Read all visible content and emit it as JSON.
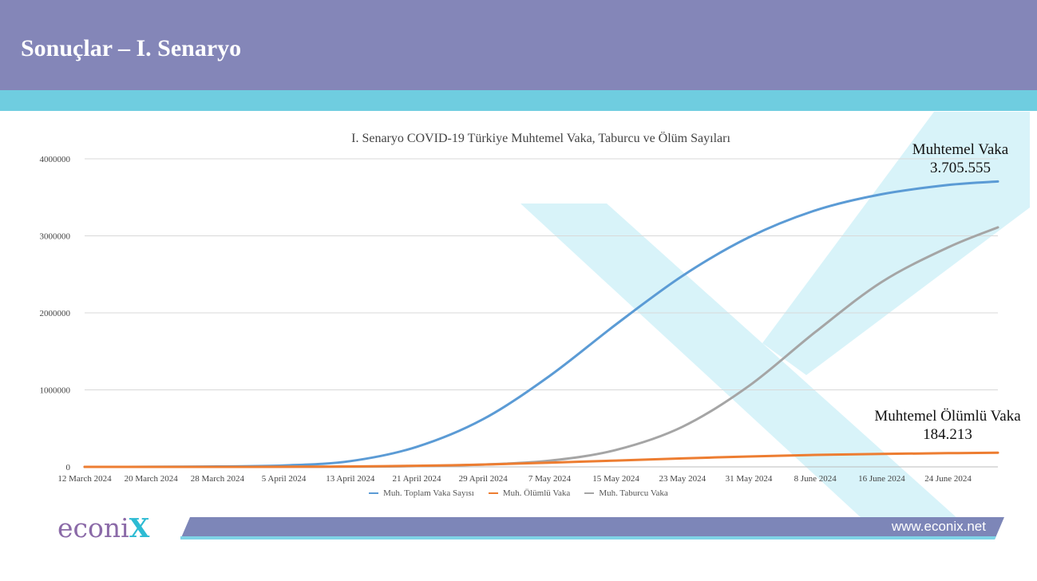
{
  "header": {
    "title": "Sonuçlar – I. Senaryo"
  },
  "colors": {
    "header": "#8486b8",
    "stripe": "#6fcde0",
    "cases": "#5b9bd5",
    "deaths": "#ed7d31",
    "discharged": "#a5a5a5"
  },
  "annotations": {
    "cases_label": "Muhtemel Vaka",
    "cases_value": "3.705.555",
    "deaths_label": "Muhtemel Ölümlü Vaka",
    "deaths_value": "184.213"
  },
  "footer": {
    "logo_text": "econi",
    "logo_x": "X",
    "url": "www.econix.net"
  },
  "chart_data": {
    "type": "line",
    "title": "I. Senaryo COVID-19 Türkiye Muhtemel Vaka, Taburcu ve Ölüm  Sayıları",
    "x_tick_labels": [
      "12 March 2024",
      "20 March 2024",
      "28 March 2024",
      "5 April 2024",
      "13 April 2024",
      "21 April 2024",
      "29 April 2024",
      "7 May 2024",
      "15 May 2024",
      "23 May 2024",
      "31 May 2024",
      "8 June 2024",
      "16 June 2024",
      "24 June 2024"
    ],
    "y_ticks": [
      0,
      1000000,
      2000000,
      3000000,
      4000000
    ],
    "ylim": [
      0,
      4000000
    ],
    "grid": true,
    "legend": "bottom",
    "x_days": [
      0,
      8,
      16,
      24,
      32,
      40,
      48,
      56,
      64,
      72,
      80,
      88,
      96,
      104,
      110
    ],
    "series": [
      {
        "name": "Muh. Toplam Vaka Sayısı",
        "color": "#5b9bd5",
        "values": [
          0,
          1000,
          5000,
          18000,
          75000,
          260000,
          620000,
          1180000,
          1850000,
          2480000,
          2980000,
          3330000,
          3540000,
          3660000,
          3705555
        ]
      },
      {
        "name": "Muh. Ölümlü Vaka",
        "color": "#ed7d31",
        "values": [
          0,
          0,
          0,
          1000,
          5000,
          14000,
          30000,
          55000,
          82000,
          110000,
          135000,
          155000,
          168000,
          178000,
          184213
        ]
      },
      {
        "name": "Muh. Taburcu Vaka",
        "color": "#a5a5a5",
        "values": [
          0,
          0,
          0,
          1000,
          3000,
          10000,
          30000,
          80000,
          220000,
          520000,
          1050000,
          1750000,
          2400000,
          2850000,
          3110000
        ]
      }
    ]
  }
}
